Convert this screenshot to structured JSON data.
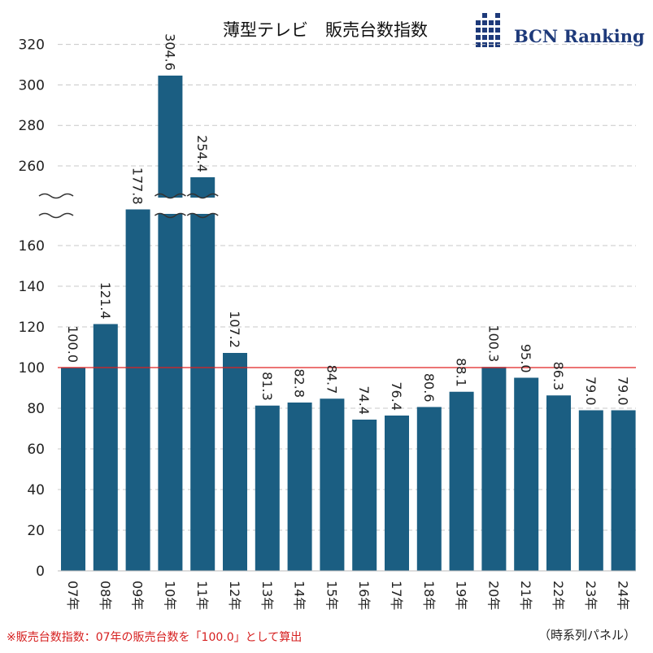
{
  "chart_data": {
    "type": "bar",
    "title": "薄型テレビ　販売台数指数",
    "categories": [
      "07年",
      "08年",
      "09年",
      "10年",
      "11年",
      "12年",
      "13年",
      "14年",
      "15年",
      "16年",
      "17年",
      "18年",
      "19年",
      "20年",
      "21年",
      "22年",
      "23年",
      "24年"
    ],
    "values": [
      100.0,
      121.4,
      177.8,
      304.6,
      254.4,
      107.2,
      81.3,
      82.8,
      84.7,
      74.4,
      76.4,
      80.6,
      88.1,
      100.3,
      95.0,
      86.3,
      79.0,
      79.0
    ],
    "value_labels": [
      "100.0",
      "121.4",
      "177.8",
      "304.6",
      "254.4",
      "107.2",
      "81.3",
      "82.8",
      "84.7",
      "74.4",
      "76.4",
      "80.6",
      "88.1",
      "100.3",
      "95.0",
      "86.3",
      "79.0",
      "79.0"
    ],
    "lower_ticks": [
      "0",
      "20",
      "40",
      "60",
      "80",
      "100",
      "120",
      "140",
      "160"
    ],
    "upper_ticks": [
      "260",
      "280",
      "300",
      "320"
    ],
    "axis_break": [
      180,
      250
    ],
    "ylim": [
      0,
      320
    ],
    "reference_line": 100,
    "grid": true,
    "colors": {
      "bar": "#1b5e82",
      "reference_line": "#e02020",
      "grid": "#c8c8c8"
    }
  },
  "logo": {
    "text": "BCN Ranking"
  },
  "footnote": "※販売台数指数：07年の販売台数を「100.0」として算出",
  "source_note": "（時系列パネル）"
}
